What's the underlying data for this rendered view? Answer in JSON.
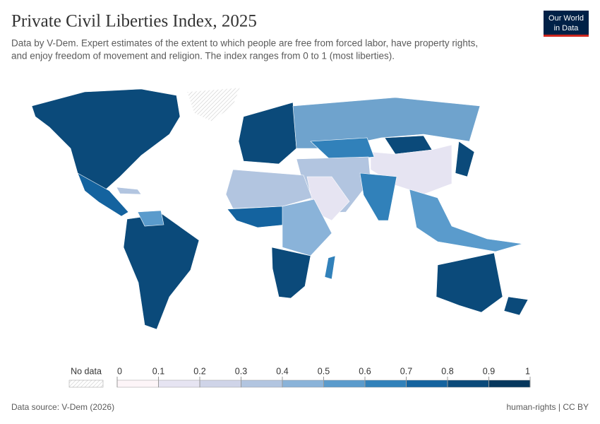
{
  "header": {
    "title": "Private Civil Liberties Index, 2025",
    "subtitle": [
      "Data by V-Dem. Expert estimates of the extent to which people are free from forced labor, have property rights,",
      "and enjoy freedom of movement and religion. The index ranges from 0 to 1 (most liberties)."
    ]
  },
  "logo": {
    "lines": [
      "Our World",
      "in Data"
    ]
  },
  "legend": {
    "no_data_label": "No data",
    "ticks": [
      0,
      0.1,
      0.2,
      0.3,
      0.4,
      0.5,
      0.6,
      0.7,
      0.8,
      0.9,
      1
    ],
    "colors": [
      "#fdf5f8",
      "#e6e4f2",
      "#cfd4e8",
      "#b2c5e0",
      "#8ab3d9",
      "#5a9bcc",
      "#3181ba",
      "#14639f",
      "#0b4a7a",
      "#06375d"
    ]
  },
  "footer": {
    "source": "Data source: V-Dem (2026)",
    "license": "human-rights | CC BY"
  }
}
